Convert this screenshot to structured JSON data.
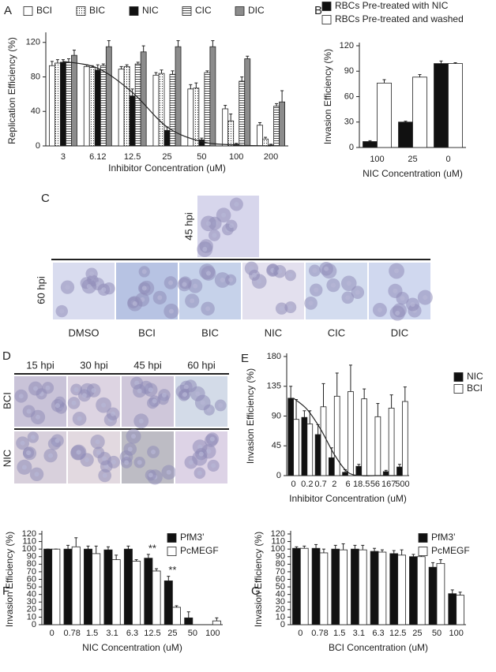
{
  "chart_data": [
    {
      "type": "bar",
      "panel": "A",
      "x_label": "Inhibitor Concentration (uM)",
      "y_label": "Replication Efficiency (%)",
      "categories": [
        "3",
        "6.12",
        "12.5",
        "25",
        "50",
        "100",
        "200"
      ],
      "series": [
        {
          "name": "BCI",
          "color": "#ffffff",
          "values": [
            93,
            92,
            89,
            82,
            66,
            43,
            24
          ],
          "errors": [
            5,
            2,
            3,
            3,
            5,
            4,
            3
          ]
        },
        {
          "name": "BIC",
          "color": "#ffffff",
          "pattern": "dots",
          "values": [
            96,
            91,
            92,
            84,
            67,
            29,
            8
          ],
          "errors": [
            4,
            2,
            2,
            4,
            6,
            8,
            2
          ]
        },
        {
          "name": "NIC",
          "color": "#111111",
          "values": [
            97,
            88,
            58,
            18,
            7,
            2,
            1
          ],
          "errors": [
            3,
            6,
            8,
            4,
            2,
            1,
            1
          ]
        },
        {
          "name": "CIC",
          "color": "#ffffff",
          "pattern": "stripes",
          "values": [
            97,
            93,
            95,
            83,
            85,
            75,
            46
          ],
          "errors": [
            4,
            2,
            2,
            4,
            2,
            5,
            3
          ]
        },
        {
          "name": "DIC",
          "color": "#8c8c8c",
          "values": [
            105,
            115,
            109,
            115,
            115,
            101,
            51
          ],
          "errors": [
            6,
            7,
            7,
            7,
            7,
            3,
            13
          ]
        }
      ],
      "fit": [
        98,
        90,
        62,
        22,
        5,
        1,
        0
      ],
      "ylim": [
        0,
        128
      ],
      "yticks": [
        0,
        40,
        80,
        120
      ]
    },
    {
      "type": "bar",
      "panel": "B",
      "x_label": "NIC Concentration (uM)",
      "y_label": "Invasion Efficiency (%)",
      "categories": [
        "100",
        "25",
        "0"
      ],
      "series": [
        {
          "name": "RBCs Pre-treated with NIC",
          "color": "#111111",
          "values": [
            7,
            30,
            99
          ],
          "errors": [
            1,
            1,
            3
          ]
        },
        {
          "name": "RBCs Pre-treated  and  washed",
          "color": "#ffffff",
          "values": [
            76,
            83,
            99
          ],
          "errors": [
            4,
            3,
            1
          ]
        }
      ],
      "ylim": [
        0,
        120
      ],
      "yticks": [
        0,
        30,
        60,
        90,
        120
      ]
    },
    {
      "type": "bar",
      "panel": "E",
      "x_label": "Inhibitor Concentration (uM)",
      "y_label": "Invasion Efficiency (%)",
      "categories": [
        "0",
        "0.2",
        "0.7",
        "2",
        "6",
        "18.5",
        "56",
        "167",
        "500"
      ],
      "series": [
        {
          "name": "NIC",
          "color": "#111111",
          "values": [
            117,
            88,
            62,
            27,
            5,
            14,
            0,
            6,
            13
          ],
          "errors": [
            18,
            10,
            15,
            15,
            4,
            3,
            0,
            2,
            4
          ]
        },
        {
          "name": "BCI",
          "color": "#ffffff",
          "values": [
            85,
            78,
            104,
            120,
            127,
            116,
            89,
            102,
            112
          ],
          "errors": [
            30,
            20,
            35,
            35,
            40,
            15,
            20,
            20,
            22
          ]
        }
      ],
      "fit": [
        117,
        100,
        70,
        32,
        5,
        0,
        0,
        0,
        0
      ],
      "ylim": [
        0,
        180
      ],
      "yticks": [
        0,
        45,
        90,
        135,
        180
      ]
    },
    {
      "type": "bar",
      "panel": "F",
      "x_label": "NIC Concentration (uM)",
      "y_label": "Invasion Efficiency (%)",
      "categories": [
        "0",
        "0.78",
        "1.5",
        "3.1",
        "6.3",
        "12.5",
        "25",
        "50",
        "100"
      ],
      "series": [
        {
          "name": "PfM3’",
          "color": "#111111",
          "values": [
            100,
            100,
            100,
            99,
            100,
            88,
            58,
            9,
            0
          ],
          "errors": [
            0,
            5,
            4,
            4,
            4,
            5,
            6,
            8,
            0
          ]
        },
        {
          "name": "PcMEGF",
          "color": "#ffffff",
          "values": [
            100,
            103,
            94,
            86,
            84,
            71,
            23,
            0,
            5
          ],
          "errors": [
            0,
            12,
            10,
            6,
            2,
            3,
            2,
            0,
            4
          ]
        }
      ],
      "annotations": [
        {
          "text": "**",
          "x": "12.5"
        },
        {
          "text": "**",
          "x": "25"
        }
      ],
      "ylim": [
        0,
        120
      ],
      "yticks": [
        0,
        10,
        20,
        30,
        40,
        50,
        60,
        70,
        80,
        90,
        100,
        110,
        120
      ]
    },
    {
      "type": "bar",
      "panel": "G",
      "x_label": "BCI Concentration (uM)",
      "y_label": "Invasion Efficiency (%)",
      "categories": [
        "0",
        "0.78",
        "1.5",
        "3.1",
        "6.3",
        "12.5",
        "25",
        "50",
        "100"
      ],
      "series": [
        {
          "name": "PfM3’",
          "color": "#111111",
          "values": [
            101,
            101,
            100,
            100,
            97,
            94,
            90,
            76,
            41
          ],
          "errors": [
            2,
            5,
            5,
            5,
            4,
            4,
            3,
            6,
            5
          ]
        },
        {
          "name": "PcMEGF",
          "color": "#ffffff",
          "values": [
            101,
            95,
            99,
            99,
            96,
            92,
            90,
            81,
            39
          ],
          "errors": [
            3,
            5,
            8,
            6,
            3,
            7,
            3,
            5,
            4
          ]
        }
      ],
      "ylim": [
        0,
        120
      ],
      "yticks": [
        0,
        10,
        20,
        30,
        40,
        50,
        60,
        70,
        80,
        90,
        100,
        110,
        120
      ]
    }
  ],
  "figure_panels": {
    "C": {
      "panel": "C",
      "top_time": "45 hpi",
      "row_time": "60 hpi",
      "labels": [
        "DMSO",
        "BCI",
        "BIC",
        "NIC",
        "CIC",
        "DIC"
      ]
    },
    "D": {
      "panel": "D",
      "times": [
        "15 hpi",
        "30 hpi",
        "45 hpi",
        "60 hpi"
      ],
      "rows": [
        "BCI",
        "NIC"
      ]
    }
  }
}
